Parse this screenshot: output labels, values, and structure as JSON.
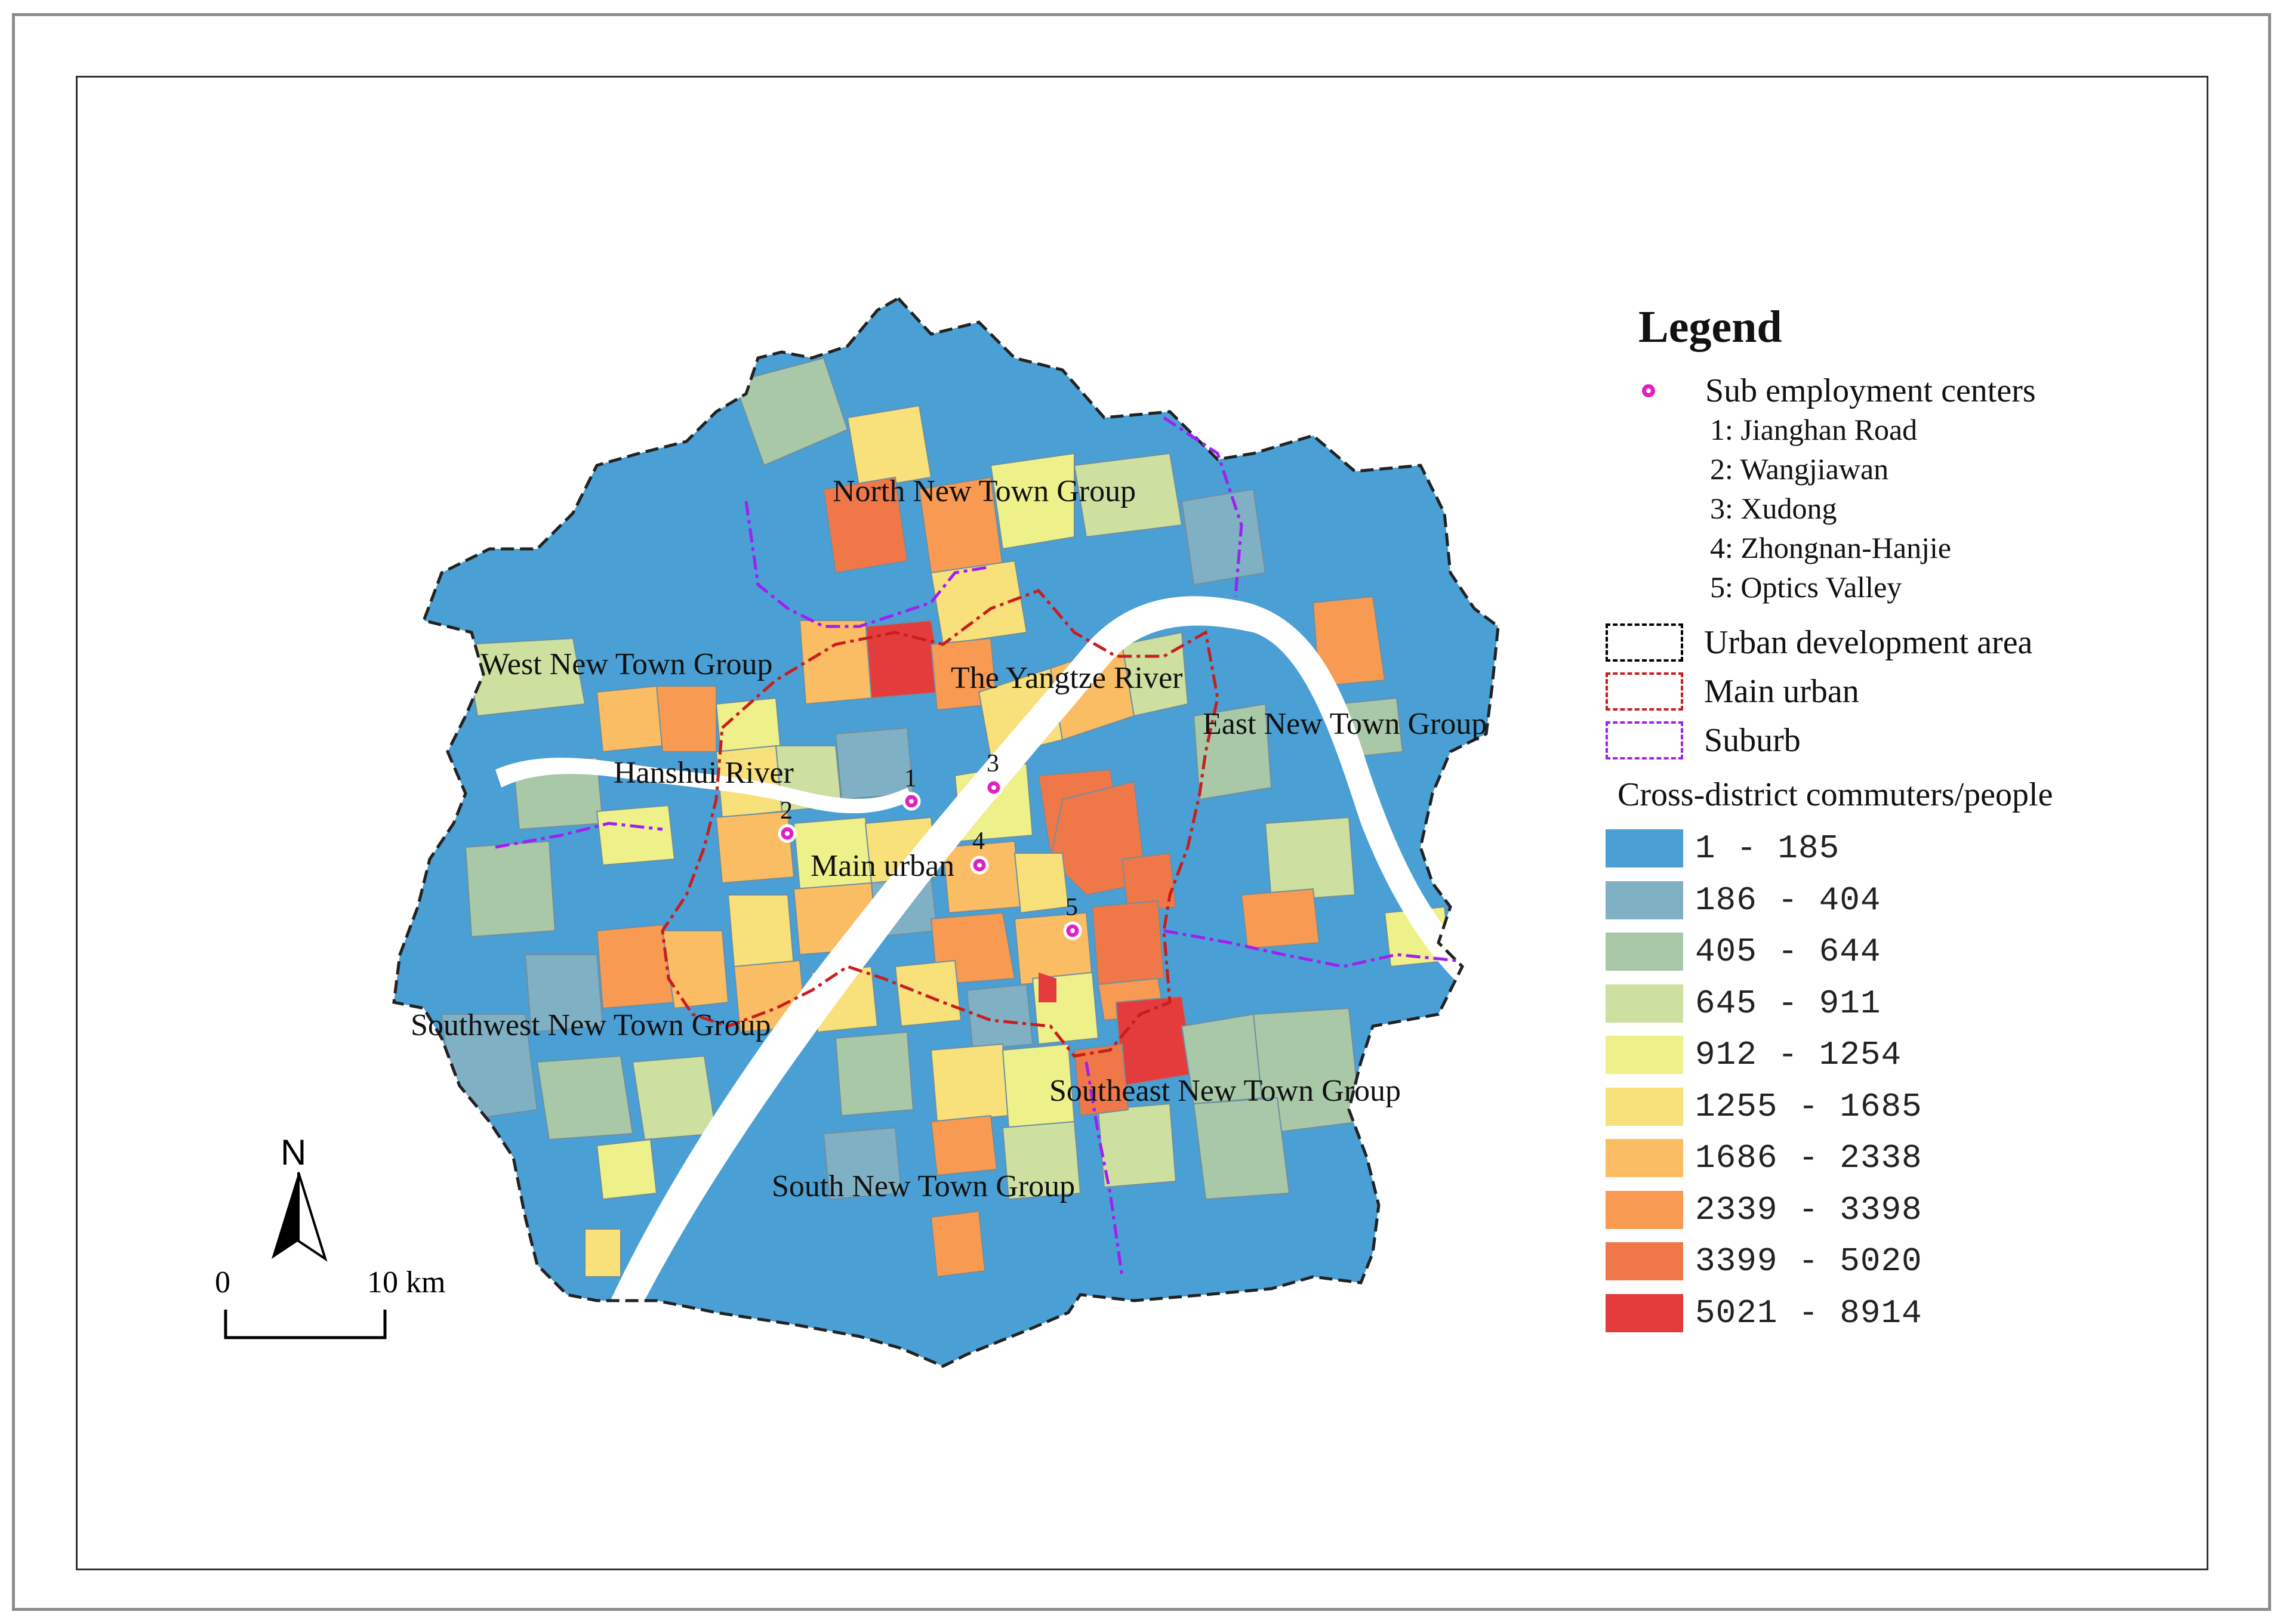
{
  "map": {
    "labels": {
      "north": "North  New Town Group",
      "west": "West New Town  Group",
      "east": "East New Town  Group",
      "southwest": "Southwest New Town  Group",
      "southeast": "Southeast New Town  Group",
      "south": "South New Town  Group",
      "yangtze": "The Yangtze River",
      "hanshui": "Hanshui River",
      "main_urban": "Main urban"
    },
    "centers": [
      {
        "num": "1",
        "name": "Jianghan Road"
      },
      {
        "num": "2",
        "name": "Wangjiawan"
      },
      {
        "num": "3",
        "name": "Xudong"
      },
      {
        "num": "4",
        "name": "Zhongnan-Hanjie"
      },
      {
        "num": "5",
        "name": "Optics Valley"
      }
    ],
    "center_color": "#e020c0"
  },
  "legend": {
    "title": "Legend",
    "sub_centers_label": "Sub employment centers",
    "center_items": [
      "1: Jianghan Road",
      "2: Wangjiawan",
      "3: Xudong",
      "4: Zhongnan-Hanjie",
      "5: Optics Valley"
    ],
    "boundaries": [
      {
        "label": "Urban development area",
        "color": "#000000",
        "style": "dashed"
      },
      {
        "label": "Main urban",
        "color": "#c81e1e",
        "style": "dash-dot"
      },
      {
        "label": "Suburb",
        "color": "#a020f0",
        "style": "dash-dot"
      }
    ],
    "classes_title": "Cross-district commuters/people",
    "classes": [
      {
        "label": "1  -  185",
        "color": "#4a9fd4"
      },
      {
        "label": "186  -  404",
        "color": "#7fb0c4"
      },
      {
        "label": "405  -  644",
        "color": "#a8c8a8"
      },
      {
        "label": "645  -  911",
        "color": "#cde0a0"
      },
      {
        "label": "912  -  1254",
        "color": "#eef08a"
      },
      {
        "label": "1255  -  1685",
        "color": "#f8e07a"
      },
      {
        "label": "1686  -  2338",
        "color": "#fbbd63"
      },
      {
        "label": "2339  -  3398",
        "color": "#f89a52"
      },
      {
        "label": "3399  -  5020",
        "color": "#f07848"
      },
      {
        "label": "5021  -  8914",
        "color": "#e43c3c"
      }
    ]
  },
  "north_arrow": "N",
  "scale_bar": {
    "start": "0",
    "end": "10 km"
  }
}
